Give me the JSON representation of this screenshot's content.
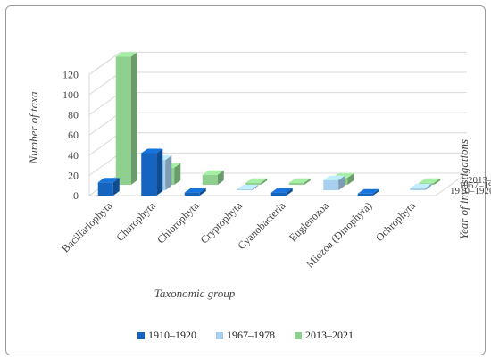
{
  "chart_data": {
    "type": "bar",
    "subtype": "3d-clustered",
    "title": "",
    "xlabel": "Taxonomic group",
    "ylabel": "Number of taxa",
    "zlabel": "Year of investigations",
    "ylim": [
      0,
      120
    ],
    "yticks": [
      0,
      20,
      40,
      60,
      80,
      100,
      120
    ],
    "grid": true,
    "legend_position": "bottom",
    "categories": [
      "Bacillariophyta",
      "Charophyta",
      "Chlorophyta",
      "Cryptophyta",
      "Cyanobacteria",
      "Euglenozoa",
      "Miozoa (Dinophyta)",
      "Ochrophyta"
    ],
    "series": [
      {
        "name": "1910–1920",
        "color": "#1565c0",
        "values": [
          13,
          42,
          3,
          0,
          3,
          0,
          2,
          0
        ]
      },
      {
        "name": "1967–1978",
        "color": "#a8d0ee",
        "values": [
          0,
          30,
          0,
          1,
          0,
          10,
          0,
          2
        ]
      },
      {
        "name": "2013–2021",
        "color": "#8fd08f",
        "values": [
          127,
          17,
          10,
          2,
          2,
          7,
          0,
          2
        ]
      }
    ]
  }
}
